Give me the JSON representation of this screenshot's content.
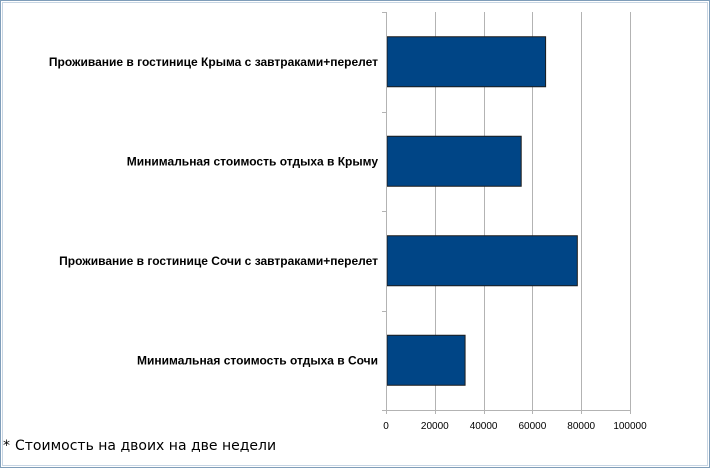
{
  "chart_data": {
    "type": "bar",
    "orientation": "horizontal",
    "categories": [
      "Проживание в гостинице Крыма с завтраками+перелет",
      "Минимальная стоимость отдыха в Крыму",
      "Проживание в гостинице Сочи с завтраками+перелет",
      "Минимальная стоимость отдыха в Сочи"
    ],
    "values": [
      65000,
      55000,
      78000,
      32000
    ],
    "xlim": [
      0,
      100000
    ],
    "xticks": [
      0,
      20000,
      40000,
      60000,
      80000,
      100000
    ],
    "xtick_labels": [
      "0",
      "20000",
      "40000",
      "60000",
      "80000",
      "100000"
    ],
    "grid": "vertical",
    "legend": "none",
    "bar_color": "#004586",
    "title": "",
    "xlabel": "",
    "ylabel": ""
  },
  "footnote": {
    "marker": "*",
    "text": "Стоимость на двоих на две недели"
  }
}
